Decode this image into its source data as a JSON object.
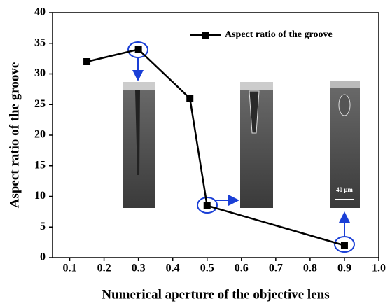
{
  "chart_data": {
    "type": "line",
    "x_label": "Numerical aperture of the objective lens",
    "y_label": "Aspect ratio of the groove",
    "series": [
      {
        "name": "Aspect ratio of the groove",
        "color": "#000000",
        "x": [
          0.15,
          0.3,
          0.45,
          0.5,
          0.9
        ],
        "values": [
          32,
          34,
          26,
          8.5,
          2
        ]
      }
    ],
    "xlim": [
      0.05,
      1.0
    ],
    "xticks": [
      0.1,
      0.2,
      0.3,
      0.4,
      0.5,
      0.6,
      0.7,
      0.8,
      0.9,
      {
        "value": 1.0,
        "label": "1.0"
      }
    ],
    "ylim": [
      0,
      40
    ],
    "yticks": [
      0,
      5,
      10,
      15,
      20,
      25,
      30,
      35,
      40
    ],
    "legend": "top-right",
    "scale_bar_label": "40 μm"
  }
}
